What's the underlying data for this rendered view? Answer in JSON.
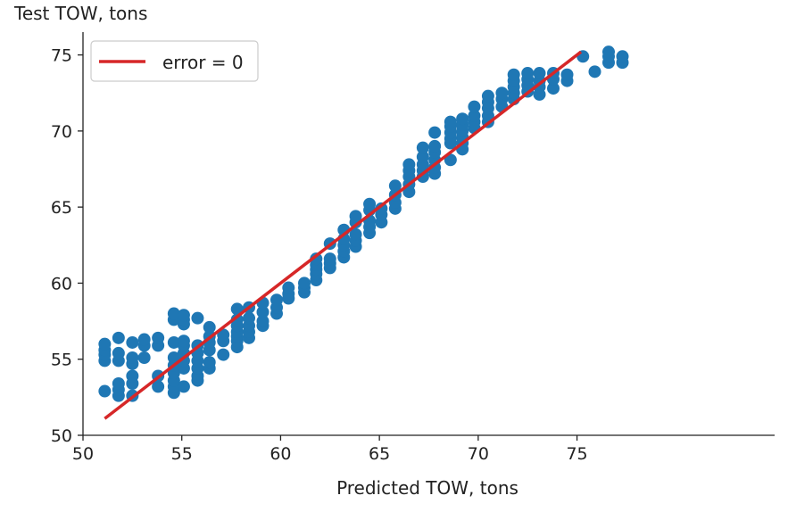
{
  "chart_data": {
    "type": "scatter",
    "title": "",
    "xlabel": "Predicted TOW, tons",
    "ylabel": "Test TOW, tons",
    "xlim": [
      50,
      85
    ],
    "ylim": [
      50,
      76.5
    ],
    "x_ticks": [
      50,
      55,
      60,
      65,
      70,
      75
    ],
    "y_ticks": [
      50,
      55,
      60,
      65,
      70,
      75
    ],
    "grid": false,
    "legend": {
      "placement": "top-left",
      "entries": [
        "error = 0"
      ]
    },
    "colors": {
      "points": "#1f77b4",
      "line": "#d62728",
      "axis": "#222222"
    },
    "reference_line": {
      "name": "error = 0",
      "x": [
        51.1,
        75.2
      ],
      "y": [
        51.1,
        75.2
      ]
    },
    "series": [
      {
        "points": [
          [
            51.1,
            52.9
          ],
          [
            51.1,
            54.9
          ],
          [
            51.1,
            55.3
          ],
          [
            51.1,
            55.6
          ],
          [
            51.1,
            56.0
          ],
          [
            51.8,
            52.6
          ],
          [
            51.8,
            53.0
          ],
          [
            51.8,
            53.4
          ],
          [
            51.8,
            54.9
          ],
          [
            51.8,
            55.4
          ],
          [
            51.8,
            56.4
          ],
          [
            52.5,
            52.6
          ],
          [
            52.5,
            53.4
          ],
          [
            52.5,
            53.9
          ],
          [
            52.5,
            54.7
          ],
          [
            52.5,
            55.1
          ],
          [
            52.5,
            56.1
          ],
          [
            53.1,
            55.1
          ],
          [
            53.1,
            55.9
          ],
          [
            53.1,
            56.3
          ],
          [
            53.8,
            53.2
          ],
          [
            53.8,
            53.9
          ],
          [
            53.8,
            55.9
          ],
          [
            53.8,
            56.4
          ],
          [
            54.6,
            52.8
          ],
          [
            54.6,
            53.2
          ],
          [
            54.6,
            53.6
          ],
          [
            54.6,
            54.1
          ],
          [
            54.6,
            54.6
          ],
          [
            54.6,
            55.1
          ],
          [
            54.6,
            56.1
          ],
          [
            54.6,
            57.6
          ],
          [
            54.6,
            58.0
          ],
          [
            55.1,
            53.2
          ],
          [
            55.1,
            54.4
          ],
          [
            55.1,
            54.9
          ],
          [
            55.1,
            55.4
          ],
          [
            55.1,
            55.9
          ],
          [
            55.1,
            56.2
          ],
          [
            55.1,
            57.3
          ],
          [
            55.1,
            57.6
          ],
          [
            55.1,
            57.9
          ],
          [
            55.8,
            53.6
          ],
          [
            55.8,
            53.9
          ],
          [
            55.8,
            54.4
          ],
          [
            55.8,
            54.9
          ],
          [
            55.8,
            55.4
          ],
          [
            55.8,
            55.9
          ],
          [
            55.8,
            57.7
          ],
          [
            56.4,
            54.4
          ],
          [
            56.4,
            54.8
          ],
          [
            56.4,
            55.6
          ],
          [
            56.4,
            56.1
          ],
          [
            56.4,
            56.5
          ],
          [
            56.4,
            57.1
          ],
          [
            57.1,
            55.3
          ],
          [
            57.1,
            56.2
          ],
          [
            57.1,
            56.6
          ],
          [
            57.8,
            55.8
          ],
          [
            57.8,
            56.2
          ],
          [
            57.8,
            56.5
          ],
          [
            57.8,
            56.8
          ],
          [
            57.8,
            57.2
          ],
          [
            57.8,
            57.6
          ],
          [
            57.8,
            58.3
          ],
          [
            58.4,
            56.4
          ],
          [
            58.4,
            56.8
          ],
          [
            58.4,
            57.2
          ],
          [
            58.4,
            57.7
          ],
          [
            58.4,
            58.4
          ],
          [
            59.1,
            57.2
          ],
          [
            59.1,
            57.5
          ],
          [
            59.1,
            58.1
          ],
          [
            59.1,
            58.7
          ],
          [
            59.8,
            58.0
          ],
          [
            59.8,
            58.4
          ],
          [
            59.8,
            58.9
          ],
          [
            60.4,
            59.0
          ],
          [
            60.4,
            59.3
          ],
          [
            60.4,
            59.7
          ],
          [
            61.2,
            59.4
          ],
          [
            61.2,
            59.7
          ],
          [
            61.2,
            60.0
          ],
          [
            61.8,
            60.2
          ],
          [
            61.8,
            60.6
          ],
          [
            61.8,
            60.9
          ],
          [
            61.8,
            61.2
          ],
          [
            61.8,
            61.6
          ],
          [
            62.5,
            61.0
          ],
          [
            62.5,
            61.3
          ],
          [
            62.5,
            61.6
          ],
          [
            62.5,
            62.6
          ],
          [
            63.2,
            61.7
          ],
          [
            63.2,
            62.1
          ],
          [
            63.2,
            62.5
          ],
          [
            63.2,
            62.9
          ],
          [
            63.2,
            63.5
          ],
          [
            63.8,
            62.4
          ],
          [
            63.8,
            62.8
          ],
          [
            63.8,
            63.2
          ],
          [
            63.8,
            64.0
          ],
          [
            63.8,
            64.4
          ],
          [
            64.5,
            63.3
          ],
          [
            64.5,
            63.7
          ],
          [
            64.5,
            64.1
          ],
          [
            64.5,
            64.8
          ],
          [
            64.5,
            65.2
          ],
          [
            65.1,
            64.0
          ],
          [
            65.1,
            64.5
          ],
          [
            65.1,
            64.9
          ],
          [
            65.8,
            64.9
          ],
          [
            65.8,
            65.3
          ],
          [
            65.8,
            65.8
          ],
          [
            65.8,
            66.4
          ],
          [
            66.5,
            66.0
          ],
          [
            66.5,
            66.5
          ],
          [
            66.5,
            67.0
          ],
          [
            66.5,
            67.4
          ],
          [
            66.5,
            67.8
          ],
          [
            67.2,
            67.0
          ],
          [
            67.2,
            67.4
          ],
          [
            67.2,
            67.8
          ],
          [
            67.2,
            68.3
          ],
          [
            67.2,
            68.9
          ],
          [
            67.8,
            67.2
          ],
          [
            67.8,
            67.6
          ],
          [
            67.8,
            68.1
          ],
          [
            67.8,
            68.6
          ],
          [
            67.8,
            69.0
          ],
          [
            67.8,
            69.9
          ],
          [
            68.6,
            68.1
          ],
          [
            68.6,
            69.2
          ],
          [
            68.6,
            69.5
          ],
          [
            68.6,
            69.9
          ],
          [
            68.6,
            70.3
          ],
          [
            68.6,
            70.6
          ],
          [
            69.2,
            68.8
          ],
          [
            69.2,
            69.2
          ],
          [
            69.2,
            69.6
          ],
          [
            69.2,
            70.0
          ],
          [
            69.2,
            70.4
          ],
          [
            69.2,
            70.8
          ],
          [
            69.8,
            70.2
          ],
          [
            69.8,
            70.6
          ],
          [
            69.8,
            71.0
          ],
          [
            69.8,
            71.6
          ],
          [
            70.5,
            70.6
          ],
          [
            70.5,
            71.0
          ],
          [
            70.5,
            71.5
          ],
          [
            70.5,
            71.9
          ],
          [
            70.5,
            72.3
          ],
          [
            71.2,
            71.6
          ],
          [
            71.2,
            72.1
          ],
          [
            71.2,
            72.5
          ],
          [
            71.8,
            72.1
          ],
          [
            71.8,
            72.5
          ],
          [
            71.8,
            72.9
          ],
          [
            71.8,
            73.3
          ],
          [
            71.8,
            73.7
          ],
          [
            72.5,
            72.6
          ],
          [
            72.5,
            73.0
          ],
          [
            72.5,
            73.4
          ],
          [
            72.5,
            73.8
          ],
          [
            73.1,
            72.4
          ],
          [
            73.1,
            72.9
          ],
          [
            73.1,
            73.3
          ],
          [
            73.1,
            73.8
          ],
          [
            73.8,
            72.8
          ],
          [
            73.8,
            73.4
          ],
          [
            73.8,
            73.8
          ],
          [
            74.5,
            73.3
          ],
          [
            74.5,
            73.7
          ],
          [
            75.3,
            74.9
          ],
          [
            75.9,
            73.9
          ],
          [
            76.6,
            74.5
          ],
          [
            76.6,
            74.9
          ],
          [
            76.6,
            75.2
          ],
          [
            77.3,
            74.5
          ],
          [
            77.3,
            74.9
          ]
        ]
      }
    ]
  }
}
